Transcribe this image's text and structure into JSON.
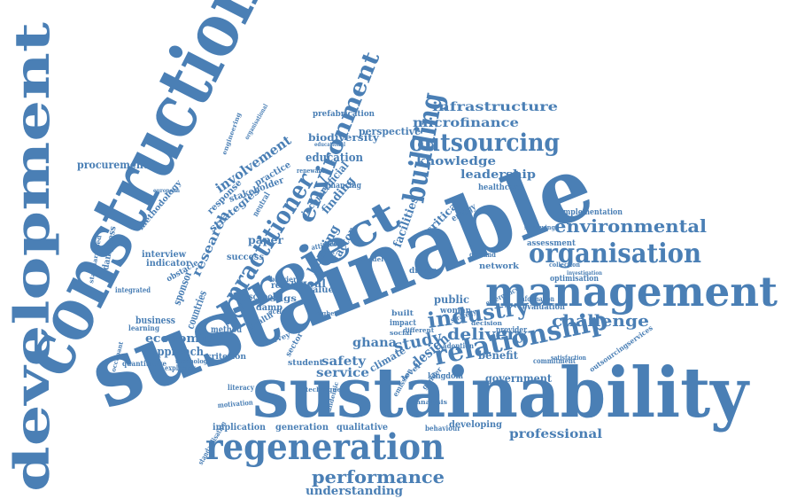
{
  "color": "#4a7fb5",
  "words": [
    {
      "t": "sustainability"
    },
    {
      "t": "sustainable"
    },
    {
      "t": "construction"
    },
    {
      "t": "development"
    },
    {
      "t": "management"
    },
    {
      "t": "project"
    },
    {
      "t": "regeneration"
    },
    {
      "t": "relationship"
    },
    {
      "t": "organisation"
    },
    {
      "t": "outsourcing"
    },
    {
      "t": "building"
    },
    {
      "t": "environment"
    },
    {
      "t": "practitioner"
    },
    {
      "t": "industry"
    },
    {
      "t": "performance"
    },
    {
      "t": "environmental"
    },
    {
      "t": "challenge"
    },
    {
      "t": "delivery"
    },
    {
      "t": "professional"
    },
    {
      "t": "understanding"
    },
    {
      "t": "infrastructure"
    },
    {
      "t": "microfinance"
    },
    {
      "t": "knowledge"
    },
    {
      "t": "leadership"
    },
    {
      "t": "procurement"
    },
    {
      "t": "study"
    },
    {
      "t": "design"
    },
    {
      "t": "ghana"
    },
    {
      "t": "safety"
    },
    {
      "t": "service"
    },
    {
      "t": "government"
    },
    {
      "t": "education"
    },
    {
      "t": "biodiversity"
    },
    {
      "t": "perspective"
    },
    {
      "t": "research"
    },
    {
      "t": "involvement"
    },
    {
      "t": "economic"
    },
    {
      "t": "approach"
    },
    {
      "t": "housing"
    },
    {
      "t": "factor"
    },
    {
      "t": "facilities"
    },
    {
      "t": "public"
    },
    {
      "t": "benefit"
    },
    {
      "t": "climate"
    },
    {
      "t": "paper"
    },
    {
      "t": "goal"
    },
    {
      "t": "success"
    },
    {
      "t": "strategies"
    },
    {
      "t": "stakeholder"
    },
    {
      "t": "practice"
    },
    {
      "t": "prefabrication"
    },
    {
      "t": "healthcare"
    },
    {
      "t": "implementation"
    },
    {
      "t": "assessment"
    },
    {
      "t": "network"
    },
    {
      "t": "optimisation"
    },
    {
      "t": "evaluation"
    },
    {
      "t": "implication"
    },
    {
      "t": "generation"
    },
    {
      "t": "qualitative"
    },
    {
      "t": "developing"
    },
    {
      "t": "criterion"
    },
    {
      "t": "quantitative"
    },
    {
      "t": "interview"
    },
    {
      "t": "indicator"
    },
    {
      "t": "methodology"
    },
    {
      "t": "dampness"
    },
    {
      "t": "business"
    },
    {
      "t": "integrated"
    },
    {
      "t": "learning"
    },
    {
      "t": "kingdom"
    },
    {
      "t": "commitment"
    },
    {
      "t": "outsourcingservices"
    },
    {
      "t": "finding"
    },
    {
      "t": "artificial"
    },
    {
      "t": "income"
    },
    {
      "t": "financing"
    },
    {
      "t": "critical"
    },
    {
      "t": "energy"
    },
    {
      "t": "value"
    },
    {
      "t": "school"
    },
    {
      "t": "sdgs"
    },
    {
      "t": "damp"
    },
    {
      "t": "result"
    },
    {
      "t": "woman"
    },
    {
      "t": "student"
    },
    {
      "t": "sector"
    },
    {
      "t": "gender"
    },
    {
      "t": "emission"
    },
    {
      "t": "behaviour"
    },
    {
      "t": "standardisation"
    },
    {
      "t": "literacy"
    },
    {
      "t": "technique"
    },
    {
      "t": "motivation"
    },
    {
      "t": "exploring"
    },
    {
      "t": "technology"
    },
    {
      "t": "method"
    },
    {
      "t": "countries"
    },
    {
      "t": "sponsor"
    },
    {
      "t": "obstacle"
    },
    {
      "t": "barrier"
    },
    {
      "t": "survey"
    },
    {
      "t": "provider"
    },
    {
      "t": "information"
    },
    {
      "t": "emergency"
    },
    {
      "t": "collection"
    },
    {
      "t": "driver"
    },
    {
      "t": "model"
    },
    {
      "t": "demand"
    },
    {
      "t": "impact"
    },
    {
      "t": "built"
    },
    {
      "t": "adoption"
    },
    {
      "t": "decision"
    },
    {
      "t": "response"
    },
    {
      "t": "organisational"
    },
    {
      "t": "engineering"
    },
    {
      "t": "standardised"
    },
    {
      "t": "occupant"
    },
    {
      "t": "european"
    },
    {
      "t": "renewable"
    },
    {
      "t": "educational"
    },
    {
      "t": "proof"
    },
    {
      "t": "attitude"
    },
    {
      "t": "neutral"
    },
    {
      "t": "health"
    },
    {
      "t": "action"
    },
    {
      "t": "higher"
    },
    {
      "t": "social"
    },
    {
      "t": "strategy"
    },
    {
      "t": "different"
    },
    {
      "t": "surveying"
    },
    {
      "t": "satisfaction"
    },
    {
      "t": "pandemic"
    },
    {
      "t": "analysis"
    },
    {
      "t": "level"
    },
    {
      "t": "investigation"
    }
  ]
}
